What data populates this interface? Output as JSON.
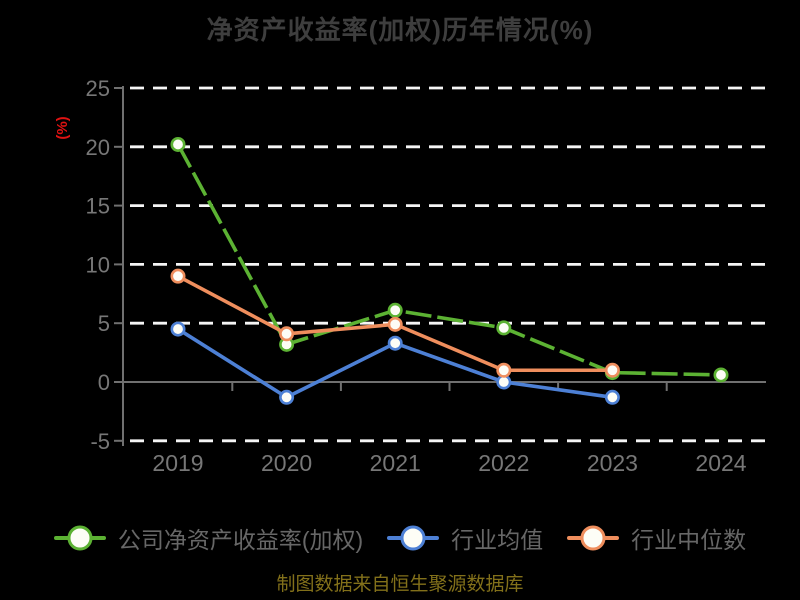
{
  "title": "净资产收益率(加权)历年情况(%)",
  "y_axis_label": "(%)",
  "footer_note": "制图数据来自恒生聚源数据库",
  "colors": {
    "background": "#000000",
    "title_text": "#3e3e3e",
    "y_axis_label_red": "#e01212",
    "axis_line": "#707070",
    "tick_label": "#777777",
    "gridline": "#f5f5f5",
    "legend_text": "#676767",
    "footer_text": "#82701a",
    "marker_fill": "#fdfdf6"
  },
  "chart_data": {
    "type": "line",
    "title": "净资产收益率(加权)历年情况(%)",
    "xlabel": "",
    "ylabel": "(%)",
    "categories": [
      "2019",
      "2020",
      "2021",
      "2022",
      "2023",
      "2024"
    ],
    "series": [
      {
        "name": "公司净资产收益率(加权)",
        "color": "#5cb233",
        "line_style": "dashed",
        "values": [
          20.2,
          3.2,
          6.1,
          4.6,
          0.8,
          0.6
        ]
      },
      {
        "name": "行业均值",
        "color": "#4d80d5",
        "line_style": "solid",
        "values": [
          4.5,
          -1.3,
          3.3,
          0.0,
          -1.3,
          null
        ]
      },
      {
        "name": "行业中位数",
        "color": "#ef8e5d",
        "line_style": "solid",
        "values": [
          9.0,
          4.1,
          4.9,
          1.0,
          1.0,
          null
        ]
      }
    ],
    "yticks": [
      25,
      20,
      15,
      10,
      5,
      0,
      -5
    ],
    "ylim": [
      -5,
      25
    ],
    "grid": "horizontal-dashed-white",
    "legend_position": "bottom",
    "source_note": "制图数据来自恒生聚源数据库"
  }
}
